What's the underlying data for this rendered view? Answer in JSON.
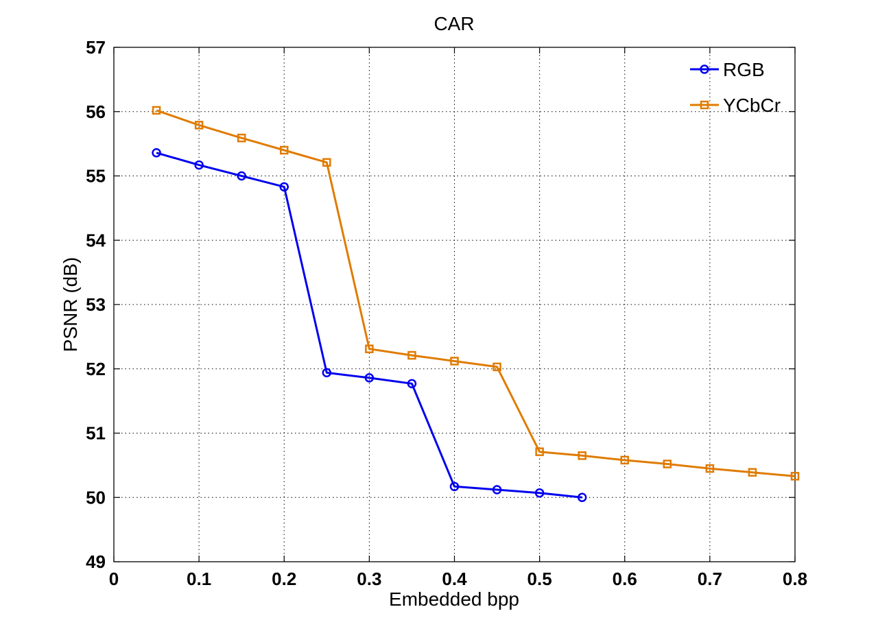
{
  "chart_data": {
    "type": "line",
    "title": "CAR",
    "xlabel": "Embedded bpp",
    "ylabel": "PSNR (dB)",
    "xlim": [
      0,
      0.8
    ],
    "ylim": [
      49,
      57
    ],
    "xticks": [
      0,
      0.1,
      0.2,
      0.3,
      0.4,
      0.5,
      0.6,
      0.7,
      0.8
    ],
    "xtick_labels": [
      "0",
      "0.1",
      "0.2",
      "0.3",
      "0.4",
      "0.5",
      "0.6",
      "0.7",
      "0.8"
    ],
    "yticks": [
      49,
      50,
      51,
      52,
      53,
      54,
      55,
      56,
      57
    ],
    "ytick_labels": [
      "49",
      "50",
      "51",
      "52",
      "53",
      "54",
      "55",
      "56",
      "57"
    ],
    "grid": true,
    "legend_position": "top-right",
    "series": [
      {
        "name": "RGB",
        "color": "#0000ee",
        "marker": "circle",
        "x": [
          0.05,
          0.1,
          0.15,
          0.2,
          0.25,
          0.3,
          0.35,
          0.4,
          0.45,
          0.5,
          0.55
        ],
        "y": [
          55.36,
          55.17,
          55.0,
          54.83,
          51.94,
          51.86,
          51.77,
          50.17,
          50.12,
          50.07,
          50.0
        ]
      },
      {
        "name": "YCbCr",
        "color": "#e07b00",
        "marker": "square",
        "x": [
          0.05,
          0.1,
          0.15,
          0.2,
          0.25,
          0.3,
          0.35,
          0.4,
          0.45,
          0.5,
          0.55,
          0.6,
          0.65,
          0.7,
          0.75,
          0.8
        ],
        "y": [
          56.02,
          55.79,
          55.59,
          55.4,
          55.21,
          52.31,
          52.21,
          52.12,
          52.03,
          50.71,
          50.65,
          50.58,
          50.52,
          50.45,
          50.39,
          50.33
        ]
      }
    ]
  }
}
